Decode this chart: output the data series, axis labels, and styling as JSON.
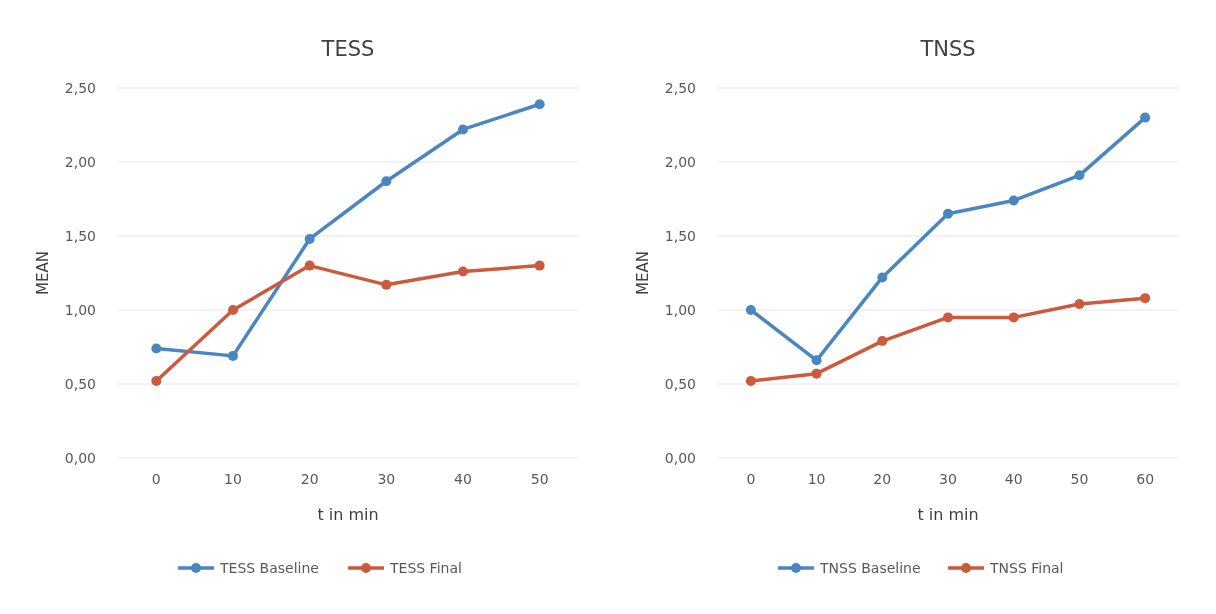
{
  "chart_data": [
    {
      "type": "line",
      "title": "TESS",
      "xlabel": "t in min",
      "ylabel": "MEAN",
      "categories": [
        "0",
        "10",
        "20",
        "30",
        "40",
        "50"
      ],
      "ylim": [
        0,
        2.5
      ],
      "yticks": [
        {
          "value": 0,
          "label": "0,00"
        },
        {
          "value": 0.5,
          "label": "0,50"
        },
        {
          "value": 1,
          "label": "1,00"
        },
        {
          "value": 1.5,
          "label": "1,50"
        },
        {
          "value": 2,
          "label": "2,00"
        },
        {
          "value": 2.5,
          "label": "2,50"
        }
      ],
      "grid": "y",
      "legend": "bottom",
      "marker": "circle",
      "line_style": "solid",
      "series": [
        {
          "name": "TESS Baseline",
          "color": "#4a86c0",
          "values": [
            0.74,
            0.69,
            1.48,
            1.87,
            2.22,
            2.39
          ]
        },
        {
          "name": "TESS Final",
          "color": "#cc5a3c",
          "values": [
            0.52,
            1.0,
            1.3,
            1.17,
            1.26,
            1.3
          ]
        }
      ]
    },
    {
      "type": "line",
      "title": "TNSS",
      "xlabel": "t in min",
      "ylabel": "MEAN",
      "categories": [
        "0",
        "10",
        "20",
        "30",
        "40",
        "50",
        "60"
      ],
      "ylim": [
        0,
        2.5
      ],
      "yticks": [
        {
          "value": 0,
          "label": "0,00"
        },
        {
          "value": 0.5,
          "label": "0,50"
        },
        {
          "value": 1,
          "label": "1,00"
        },
        {
          "value": 1.5,
          "label": "1,50"
        },
        {
          "value": 2,
          "label": "2,00"
        },
        {
          "value": 2.5,
          "label": "2,50"
        }
      ],
      "grid": "y",
      "legend": "bottom",
      "marker": "circle",
      "line_style": "solid",
      "series": [
        {
          "name": "TNSS Baseline",
          "color": "#4a86c0",
          "values": [
            1.0,
            0.66,
            1.22,
            1.65,
            1.74,
            1.91,
            2.3
          ]
        },
        {
          "name": "TNSS Final",
          "color": "#cc5a3c",
          "values": [
            0.52,
            0.57,
            0.79,
            0.95,
            0.95,
            1.04,
            1.08
          ]
        }
      ]
    }
  ]
}
